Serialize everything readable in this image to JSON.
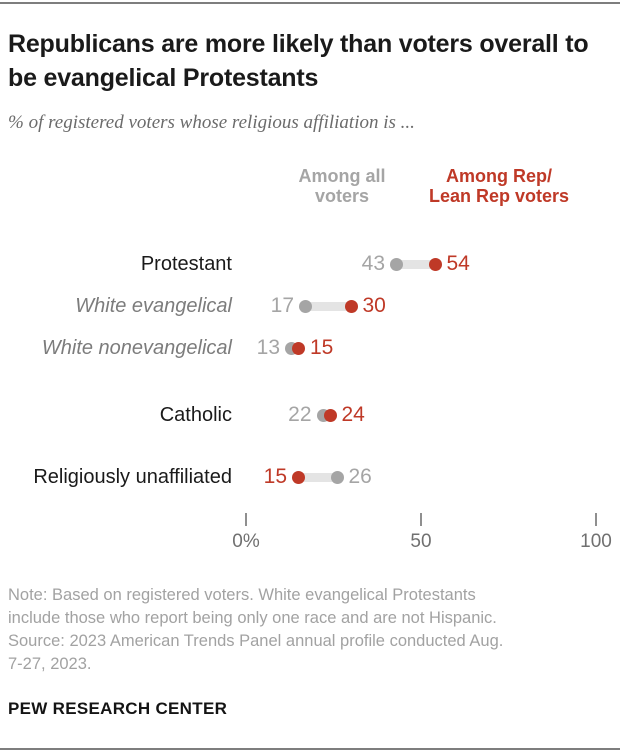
{
  "header": {
    "title": "Republicans are more likely than voters overall to be evangelical Protestants",
    "subtitle": "% of registered voters whose religious affiliation is ..."
  },
  "legend": {
    "all_voters_label": "Among all\nvoters",
    "rep_voters_label": "Among Rep/\nLean Rep voters"
  },
  "colors": {
    "all_voters_gray": "#a5a5a5",
    "rep_red": "#bf3927",
    "connector_gray": "#e4e4e4",
    "category_black": "#1a1a1a",
    "category_sub_gray": "#7c7c7c"
  },
  "chart_data": {
    "type": "scatter",
    "variant": "dot-plot",
    "title": "Republicans are more likely than voters overall to be evangelical Protestants",
    "xlabel": "",
    "ylabel": "",
    "xlim": [
      0,
      100
    ],
    "grid": false,
    "legend_position": "top",
    "categories": [
      {
        "label": "Protestant",
        "sub": false
      },
      {
        "label": "White evangelical",
        "sub": true
      },
      {
        "label": "White nonevangelical",
        "sub": true
      },
      {
        "label": "Catholic",
        "sub": false
      },
      {
        "label": "Religiously unaffiliated",
        "sub": false
      }
    ],
    "series": [
      {
        "name": "Among all voters",
        "color": "#a5a5a5",
        "values": [
          43,
          17,
          13,
          22,
          26
        ]
      },
      {
        "name": "Among Rep/Lean Rep voters",
        "color": "#bf3927",
        "values": [
          54,
          30,
          15,
          24,
          15
        ]
      }
    ],
    "x_ticks": [
      {
        "value": 0,
        "label": "0%"
      },
      {
        "value": 50,
        "label": "50"
      },
      {
        "value": 100,
        "label": "100"
      }
    ]
  },
  "note_lines": [
    "Note: Based on registered voters. White evangelical Protestants",
    "include those who report being only one race and are not Hispanic.",
    "Source: 2023 American Trends Panel annual profile conducted Aug.",
    "7-27, 2023."
  ],
  "footer": "PEW RESEARCH CENTER"
}
